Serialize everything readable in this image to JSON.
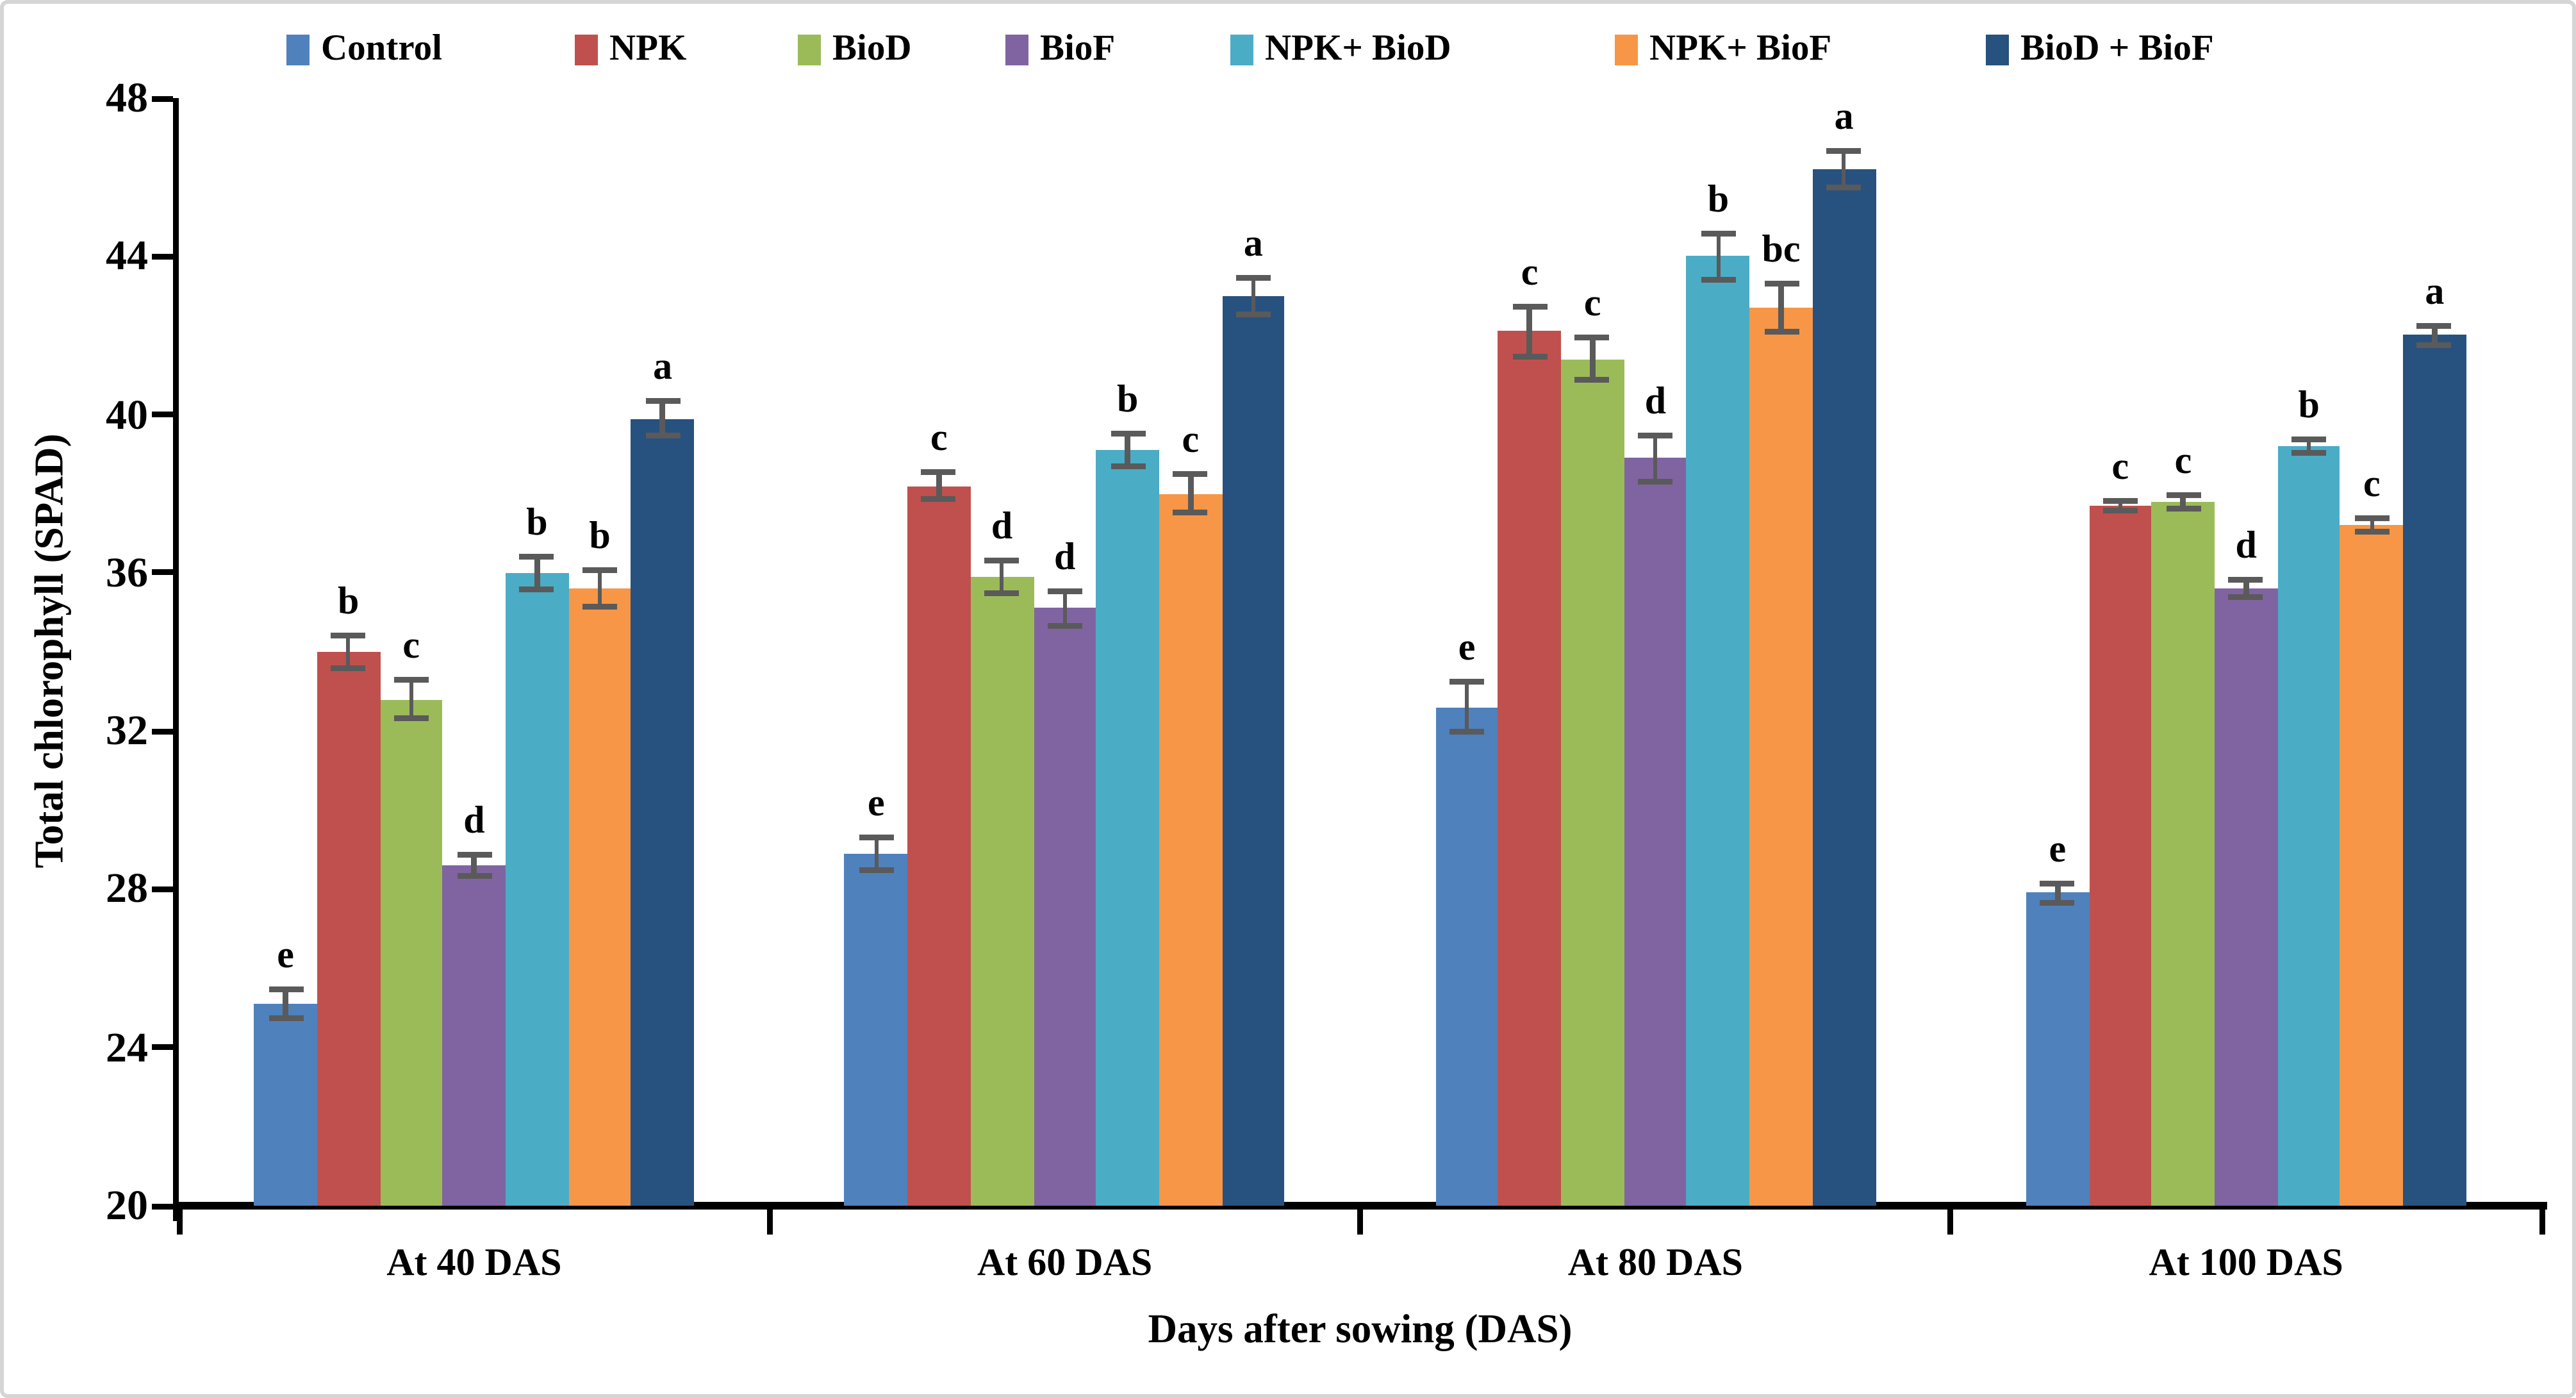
{
  "figure": {
    "y_axis_title": "Total chlorophyll (SPAD)",
    "x_axis_title": "Days after sowing (DAS)"
  },
  "chart_data": {
    "type": "bar",
    "title": "",
    "xlabel": "Days after sowing (DAS)",
    "ylabel": "Total chlorophyll (SPAD)",
    "ylim": [
      20,
      48
    ],
    "yticks": [
      20,
      24,
      28,
      32,
      36,
      40,
      44,
      48
    ],
    "grid": false,
    "legend_position": "top",
    "error_bar_color": "#5a5a5a",
    "categories": [
      "At 40 DAS",
      "At 60 DAS",
      "At 80 DAS",
      "At 100 DAS"
    ],
    "series": [
      {
        "name": "Control",
        "color": "#4F81BD",
        "values": [
          25.1,
          28.9,
          32.6,
          27.9
        ],
        "errors": [
          0.45,
          0.5,
          0.7,
          0.3
        ],
        "letters": [
          "e",
          "e",
          "e",
          "e"
        ]
      },
      {
        "name": "NPK",
        "color": "#C0504D",
        "values": [
          34.0,
          38.2,
          42.1,
          37.7
        ],
        "errors": [
          0.5,
          0.4,
          0.7,
          0.2
        ],
        "letters": [
          "b",
          "c",
          "c",
          "c"
        ]
      },
      {
        "name": "BioD",
        "color": "#9BBB59",
        "values": [
          32.8,
          35.9,
          41.4,
          37.8
        ],
        "errors": [
          0.55,
          0.5,
          0.6,
          0.25
        ],
        "letters": [
          "c",
          "d",
          "c",
          "c"
        ]
      },
      {
        "name": "BioF",
        "color": "#8064A2",
        "values": [
          28.6,
          35.1,
          38.9,
          35.6
        ],
        "errors": [
          0.35,
          0.5,
          0.65,
          0.3
        ],
        "letters": [
          "d",
          "d",
          "d",
          "d"
        ]
      },
      {
        "name": "NPK+ BioD",
        "color": "#4BACC6",
        "values": [
          36.0,
          39.1,
          44.0,
          39.2
        ],
        "errors": [
          0.5,
          0.5,
          0.65,
          0.25
        ],
        "letters": [
          "b",
          "b",
          "b",
          "b"
        ]
      },
      {
        "name": "NPK+ BioF",
        "color": "#F79646",
        "values": [
          35.6,
          38.0,
          42.7,
          37.2
        ],
        "errors": [
          0.55,
          0.55,
          0.7,
          0.25
        ],
        "letters": [
          "b",
          "c",
          "bc",
          "c"
        ]
      },
      {
        "name": "BioD + BioF",
        "color": "#27517E",
        "values": [
          39.9,
          43.0,
          46.2,
          42.0
        ],
        "errors": [
          0.5,
          0.55,
          0.55,
          0.3
        ],
        "letters": [
          "a",
          "a",
          "a",
          "a"
        ]
      }
    ]
  }
}
